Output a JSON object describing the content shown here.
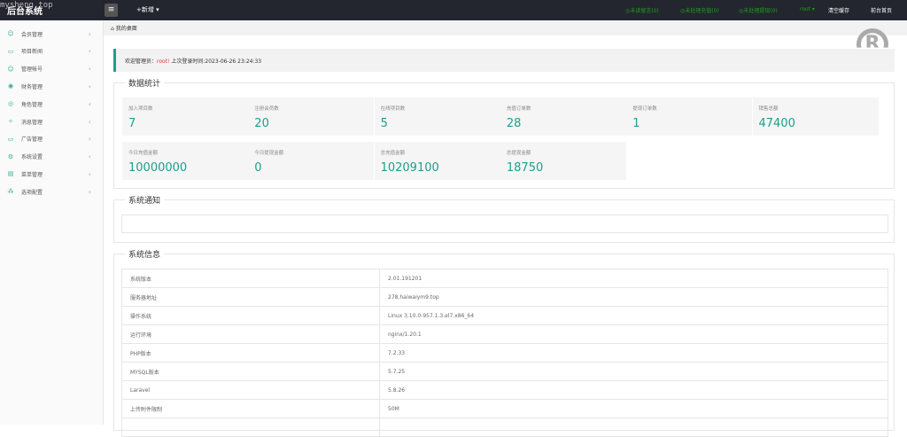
{
  "header": {
    "logo": "后台系统",
    "watermark": "mysheng.top",
    "new_label": "+新增 ▾",
    "links": [
      "◎未读留言(0)",
      "◎未处理充值(0)",
      "◎未处理提现(0)"
    ],
    "user": "root ▾",
    "clear_cache": "清空缓存",
    "front_home": "前台首页"
  },
  "sidebar": {
    "items": [
      {
        "icon": "user-icon",
        "glyph": "☺",
        "label": "会员管理"
      },
      {
        "icon": "news-icon",
        "glyph": "▭",
        "label": "项目新闻"
      },
      {
        "icon": "admin-icon",
        "glyph": "☺",
        "label": "管理帐号"
      },
      {
        "icon": "finance-icon",
        "glyph": "◉",
        "label": "财务管理"
      },
      {
        "icon": "role-icon",
        "glyph": "◎",
        "label": "角色管理"
      },
      {
        "icon": "message-icon",
        "glyph": "✧",
        "label": "消息管理"
      },
      {
        "icon": "ad-icon",
        "glyph": "▭",
        "label": "广告管理"
      },
      {
        "icon": "settings-icon",
        "glyph": "⚙",
        "label": "系统设置"
      },
      {
        "icon": "menu-icon",
        "glyph": "▤",
        "label": "菜单管理"
      },
      {
        "icon": "options-icon",
        "glyph": "⁂",
        "label": "选项配置"
      }
    ]
  },
  "breadcrumb": {
    "home": "我的桌面"
  },
  "welcome": {
    "prefix": "欢迎管理员：",
    "user": "root!",
    "suffix": " 上次登录时间:2023-06-26 23:24:33"
  },
  "stats": {
    "title": "数据统计",
    "cards": [
      {
        "label": "加入项目数",
        "value": "7"
      },
      {
        "label": "注册会员数",
        "value": "20"
      },
      {
        "label": "在线项目数",
        "value": "5"
      },
      {
        "label": "充值订单数",
        "value": "28"
      },
      {
        "label": "提现订单数",
        "value": "1"
      },
      {
        "label": "销售总额",
        "value": "47400"
      },
      {
        "label": "今日充值金额",
        "value": "10000000"
      },
      {
        "label": "今日提现金额",
        "value": "0"
      },
      {
        "label": "总充值金额",
        "value": "10209100"
      },
      {
        "label": "总提现金额",
        "value": "18750"
      }
    ]
  },
  "notice": {
    "title": "系统通知"
  },
  "sysinfo": {
    "title": "系统信息",
    "rows": [
      [
        "系统版本",
        "2.01.191201"
      ],
      [
        "服务器地址",
        "278.haiwaiym9.top"
      ],
      [
        "操作系统",
        "Linux 3.10.0-957.1.3.el7.x86_64"
      ],
      [
        "运行环境",
        "nginx/1.20.1"
      ],
      [
        "PHP版本",
        "7.2.33"
      ],
      [
        "MYSQL版本",
        "5.7.25"
      ],
      [
        "Laravel",
        "5.8.26"
      ],
      [
        "上传附件限制",
        "50M"
      ]
    ]
  },
  "accent": "#1e9e8c"
}
